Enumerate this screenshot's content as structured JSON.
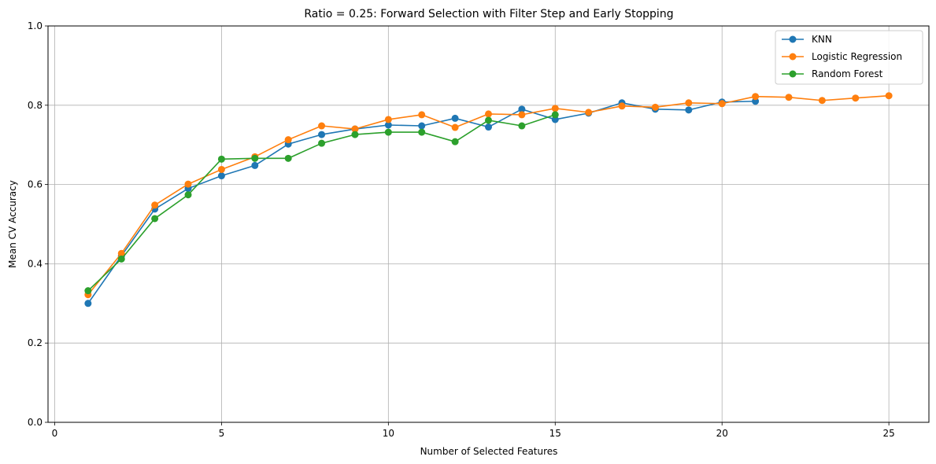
{
  "chart_data": {
    "type": "line",
    "title": "Ratio = 0.25: Forward Selection with Filter Step and Early Stopping",
    "xlabel": "Number of Selected Features",
    "ylabel": "Mean CV Accuracy",
    "xlim": [
      -0.2,
      26.2
    ],
    "ylim": [
      0.0,
      1.0
    ],
    "xticks": [
      0,
      5,
      10,
      15,
      20,
      25
    ],
    "yticks": [
      0.0,
      0.2,
      0.4,
      0.6,
      0.8,
      1.0
    ],
    "xtick_labels": [
      "0",
      "5",
      "10",
      "15",
      "20",
      "25"
    ],
    "ytick_labels": [
      "0.0",
      "0.2",
      "0.4",
      "0.6",
      "0.8",
      "1.0"
    ],
    "grid": true,
    "legend_position": "top-right",
    "series": [
      {
        "name": "KNN",
        "color": "#1f77b4",
        "x": [
          1,
          2,
          3,
          4,
          5,
          6,
          7,
          8,
          9,
          10,
          11,
          12,
          13,
          14,
          15,
          16,
          17,
          18,
          19,
          20,
          21
        ],
        "values": [
          0.3,
          0.42,
          0.538,
          0.59,
          0.622,
          0.648,
          0.702,
          0.726,
          0.74,
          0.75,
          0.748,
          0.767,
          0.745,
          0.79,
          0.764,
          0.78,
          0.806,
          0.79,
          0.788,
          0.808,
          0.81
        ]
      },
      {
        "name": "Logistic Regression",
        "color": "#ff7f0e",
        "x": [
          1,
          2,
          3,
          4,
          5,
          6,
          7,
          8,
          9,
          10,
          11,
          12,
          13,
          14,
          15,
          16,
          17,
          18,
          19,
          20,
          21,
          22,
          23,
          24,
          25
        ],
        "values": [
          0.322,
          0.426,
          0.548,
          0.601,
          0.638,
          0.67,
          0.713,
          0.748,
          0.74,
          0.764,
          0.776,
          0.744,
          0.778,
          0.776,
          0.792,
          0.782,
          0.798,
          0.795,
          0.806,
          0.804,
          0.822,
          0.82,
          0.812,
          0.818,
          0.824
        ]
      },
      {
        "name": "Random Forest",
        "color": "#2ca02c",
        "x": [
          1,
          2,
          3,
          4,
          5,
          6,
          7,
          8,
          9,
          10,
          11,
          12,
          13,
          14,
          15
        ],
        "values": [
          0.332,
          0.412,
          0.514,
          0.574,
          0.664,
          0.666,
          0.666,
          0.704,
          0.726,
          0.732,
          0.732,
          0.708,
          0.762,
          0.748,
          0.776
        ]
      }
    ]
  }
}
